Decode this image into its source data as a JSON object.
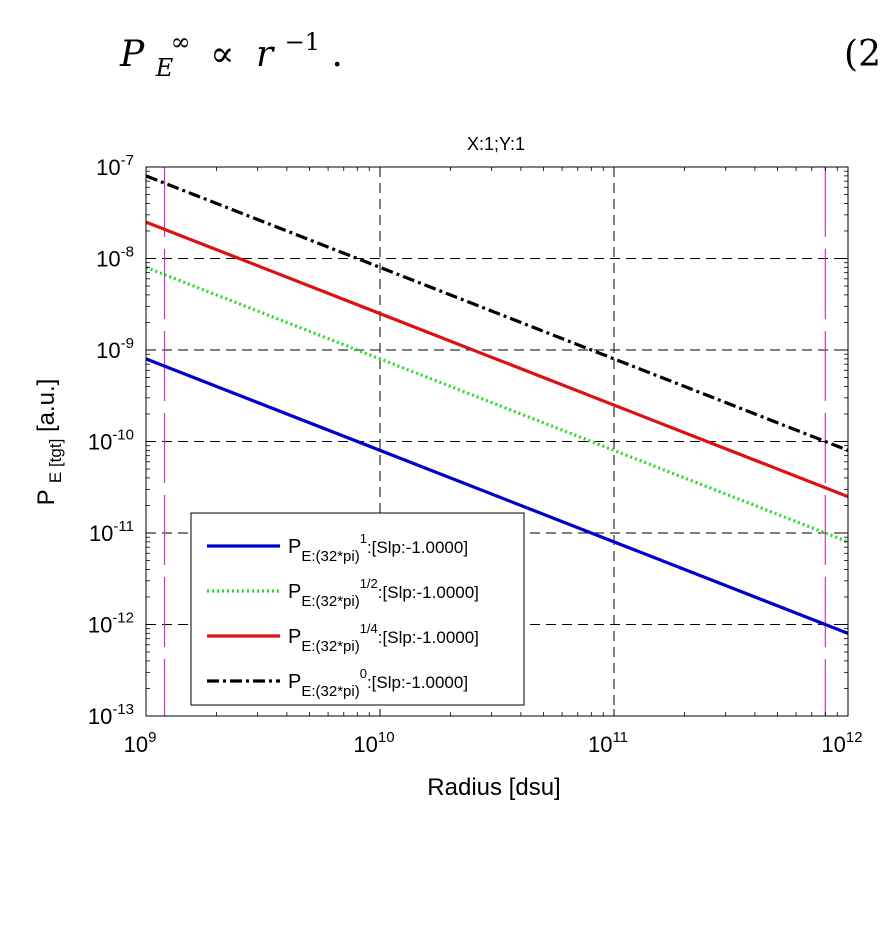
{
  "equation": {
    "base": "P",
    "sub": "E",
    "sup": "∞",
    "relation": "∝",
    "rhs": "r",
    "rhs_exp": "−1",
    "end": ".",
    "number": "(2"
  },
  "chart_data": {
    "type": "line",
    "title": "X:1;Y:1",
    "xlabel": "Radius [dsu]",
    "ylabel_main": "P",
    "ylabel_sub": "E [tgt]",
    "ylabel_tail": " [a.u.]",
    "xscale": "log",
    "yscale": "log",
    "xlim": [
      1000000000,
      1000000000000
    ],
    "ylim": [
      1e-13,
      1e-07
    ],
    "x_ticks": [
      {
        "value": 1000000000,
        "base": "10",
        "exp": "9"
      },
      {
        "value": 10000000000,
        "base": "10",
        "exp": "10"
      },
      {
        "value": 100000000000,
        "base": "10",
        "exp": "11"
      },
      {
        "value": 1000000000000,
        "base": "10",
        "exp": "12"
      }
    ],
    "y_ticks": [
      {
        "value": 1e-07,
        "base": "10",
        "exp": "-7"
      },
      {
        "value": 1e-08,
        "base": "10",
        "exp": "-8"
      },
      {
        "value": 1e-09,
        "base": "10",
        "exp": "-9"
      },
      {
        "value": 1e-10,
        "base": "10",
        "exp": "-10"
      },
      {
        "value": 1e-11,
        "base": "10",
        "exp": "-11"
      },
      {
        "value": 1e-12,
        "base": "10",
        "exp": "-12"
      },
      {
        "value": 1e-13,
        "base": "10",
        "exp": "-13"
      }
    ],
    "grid": true,
    "vertical_markers": [
      1200000000,
      800000000000
    ],
    "marker_color": "#cc33cc",
    "legend_position": "bottom-left",
    "series": [
      {
        "label_main": "P",
        "label_sub": "E:(32*pi)",
        "label_exp": "1",
        "label_tail": ":[Slp:-1.0000]",
        "color": "#0000cc",
        "dash": "solid",
        "x": [
          1000000000,
          1000000000000
        ],
        "y": [
          8e-10,
          8e-13
        ]
      },
      {
        "label_main": "P",
        "label_sub": "E:(32*pi)",
        "label_exp": "1/2",
        "label_tail": ":[Slp:-1.0000]",
        "color": "#22dd22",
        "dash": "dotted",
        "x": [
          1000000000,
          1000000000000
        ],
        "y": [
          8e-09,
          8e-12
        ]
      },
      {
        "label_main": "P",
        "label_sub": "E:(32*pi)",
        "label_exp": "1/4",
        "label_tail": ":[Slp:-1.0000]",
        "color": "#dd1111",
        "dash": "solid",
        "x": [
          1000000000,
          1000000000000
        ],
        "y": [
          2.5e-08,
          2.5e-11
        ]
      },
      {
        "label_main": "P",
        "label_sub": "E:(32*pi)",
        "label_exp": "0",
        "label_tail": ":[Slp:-1.0000]",
        "color": "#000000",
        "dash": "dashdot",
        "x": [
          1000000000,
          1000000000000
        ],
        "y": [
          8e-08,
          8e-11
        ]
      }
    ]
  }
}
